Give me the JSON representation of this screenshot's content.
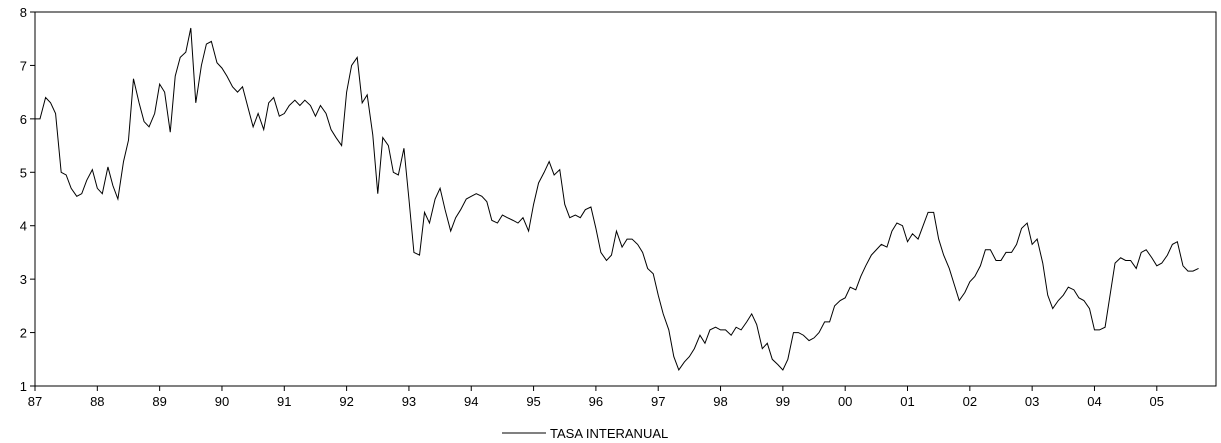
{
  "chart_data": {
    "type": "line",
    "xlabel": "",
    "ylabel": "",
    "ylim": [
      1,
      8
    ],
    "yticks": [
      1,
      2,
      3,
      4,
      5,
      6,
      7,
      8
    ],
    "xlim": [
      1987.0,
      2005.95
    ],
    "xticks": [
      {
        "value": 1987,
        "label": "87"
      },
      {
        "value": 1988,
        "label": "88"
      },
      {
        "value": 1989,
        "label": "89"
      },
      {
        "value": 1990,
        "label": "90"
      },
      {
        "value": 1991,
        "label": "91"
      },
      {
        "value": 1992,
        "label": "92"
      },
      {
        "value": 1993,
        "label": "93"
      },
      {
        "value": 1994,
        "label": "94"
      },
      {
        "value": 1995,
        "label": "95"
      },
      {
        "value": 1996,
        "label": "96"
      },
      {
        "value": 1997,
        "label": "97"
      },
      {
        "value": 1998,
        "label": "98"
      },
      {
        "value": 1999,
        "label": "99"
      },
      {
        "value": 2000,
        "label": "00"
      },
      {
        "value": 2001,
        "label": "01"
      },
      {
        "value": 2002,
        "label": "02"
      },
      {
        "value": 2003,
        "label": "03"
      },
      {
        "value": 2004,
        "label": "04"
      },
      {
        "value": 2005,
        "label": "05"
      }
    ],
    "grid": false,
    "legend_position": "bottom-center",
    "series": [
      {
        "name": "TASA INTERANUAL",
        "color": "#000000",
        "points": [
          [
            1987.0,
            6.0
          ],
          [
            1987.08,
            6.0
          ],
          [
            1987.17,
            6.4
          ],
          [
            1987.25,
            6.3
          ],
          [
            1987.33,
            6.1
          ],
          [
            1987.42,
            5.0
          ],
          [
            1987.5,
            4.95
          ],
          [
            1987.58,
            4.7
          ],
          [
            1987.67,
            4.55
          ],
          [
            1987.75,
            4.6
          ],
          [
            1987.83,
            4.85
          ],
          [
            1987.92,
            5.05
          ],
          [
            1988.0,
            4.7
          ],
          [
            1988.08,
            4.6
          ],
          [
            1988.17,
            5.1
          ],
          [
            1988.25,
            4.75
          ],
          [
            1988.33,
            4.5
          ],
          [
            1988.42,
            5.2
          ],
          [
            1988.5,
            5.6
          ],
          [
            1988.58,
            6.75
          ],
          [
            1988.67,
            6.3
          ],
          [
            1988.75,
            5.95
          ],
          [
            1988.83,
            5.85
          ],
          [
            1988.92,
            6.1
          ],
          [
            1989.0,
            6.65
          ],
          [
            1989.08,
            6.5
          ],
          [
            1989.17,
            5.75
          ],
          [
            1989.25,
            6.8
          ],
          [
            1989.33,
            7.15
          ],
          [
            1989.42,
            7.25
          ],
          [
            1989.5,
            7.7
          ],
          [
            1989.58,
            6.3
          ],
          [
            1989.67,
            7.0
          ],
          [
            1989.75,
            7.4
          ],
          [
            1989.83,
            7.45
          ],
          [
            1989.92,
            7.05
          ],
          [
            1990.0,
            6.95
          ],
          [
            1990.08,
            6.8
          ],
          [
            1990.17,
            6.6
          ],
          [
            1990.25,
            6.5
          ],
          [
            1990.33,
            6.6
          ],
          [
            1990.42,
            6.2
          ],
          [
            1990.5,
            5.85
          ],
          [
            1990.58,
            6.1
          ],
          [
            1990.67,
            5.8
          ],
          [
            1990.75,
            6.3
          ],
          [
            1990.83,
            6.4
          ],
          [
            1990.92,
            6.05
          ],
          [
            1991.0,
            6.1
          ],
          [
            1991.08,
            6.25
          ],
          [
            1991.17,
            6.35
          ],
          [
            1991.25,
            6.25
          ],
          [
            1991.33,
            6.35
          ],
          [
            1991.42,
            6.25
          ],
          [
            1991.5,
            6.05
          ],
          [
            1991.58,
            6.25
          ],
          [
            1991.67,
            6.1
          ],
          [
            1991.75,
            5.8
          ],
          [
            1991.83,
            5.65
          ],
          [
            1991.92,
            5.5
          ],
          [
            1992.0,
            6.5
          ],
          [
            1992.08,
            7.0
          ],
          [
            1992.17,
            7.15
          ],
          [
            1992.25,
            6.3
          ],
          [
            1992.33,
            6.45
          ],
          [
            1992.42,
            5.7
          ],
          [
            1992.5,
            4.6
          ],
          [
            1992.58,
            5.65
          ],
          [
            1992.67,
            5.5
          ],
          [
            1992.75,
            5.0
          ],
          [
            1992.83,
            4.95
          ],
          [
            1992.92,
            5.45
          ],
          [
            1993.0,
            4.5
          ],
          [
            1993.08,
            3.5
          ],
          [
            1993.17,
            3.45
          ],
          [
            1993.25,
            4.25
          ],
          [
            1993.33,
            4.05
          ],
          [
            1993.42,
            4.5
          ],
          [
            1993.5,
            4.7
          ],
          [
            1993.58,
            4.3
          ],
          [
            1993.67,
            3.9
          ],
          [
            1993.75,
            4.15
          ],
          [
            1993.83,
            4.3
          ],
          [
            1993.92,
            4.5
          ],
          [
            1994.0,
            4.55
          ],
          [
            1994.08,
            4.6
          ],
          [
            1994.17,
            4.55
          ],
          [
            1994.25,
            4.45
          ],
          [
            1994.33,
            4.1
          ],
          [
            1994.42,
            4.05
          ],
          [
            1994.5,
            4.2
          ],
          [
            1994.58,
            4.15
          ],
          [
            1994.67,
            4.1
          ],
          [
            1994.75,
            4.05
          ],
          [
            1994.83,
            4.15
          ],
          [
            1994.92,
            3.9
          ],
          [
            1995.0,
            4.4
          ],
          [
            1995.08,
            4.8
          ],
          [
            1995.17,
            5.0
          ],
          [
            1995.25,
            5.2
          ],
          [
            1995.33,
            4.95
          ],
          [
            1995.42,
            5.05
          ],
          [
            1995.5,
            4.4
          ],
          [
            1995.58,
            4.15
          ],
          [
            1995.67,
            4.2
          ],
          [
            1995.75,
            4.15
          ],
          [
            1995.83,
            4.3
          ],
          [
            1995.92,
            4.35
          ],
          [
            1996.0,
            3.95
          ],
          [
            1996.08,
            3.5
          ],
          [
            1996.17,
            3.35
          ],
          [
            1996.25,
            3.45
          ],
          [
            1996.33,
            3.9
          ],
          [
            1996.42,
            3.6
          ],
          [
            1996.5,
            3.75
          ],
          [
            1996.58,
            3.75
          ],
          [
            1996.67,
            3.65
          ],
          [
            1996.75,
            3.5
          ],
          [
            1996.83,
            3.2
          ],
          [
            1996.92,
            3.1
          ],
          [
            1997.0,
            2.7
          ],
          [
            1997.08,
            2.35
          ],
          [
            1997.17,
            2.05
          ],
          [
            1997.25,
            1.55
          ],
          [
            1997.33,
            1.3
          ],
          [
            1997.42,
            1.45
          ],
          [
            1997.5,
            1.55
          ],
          [
            1997.58,
            1.7
          ],
          [
            1997.67,
            1.95
          ],
          [
            1997.75,
            1.8
          ],
          [
            1997.83,
            2.05
          ],
          [
            1997.92,
            2.1
          ],
          [
            1998.0,
            2.05
          ],
          [
            1998.08,
            2.05
          ],
          [
            1998.17,
            1.95
          ],
          [
            1998.25,
            2.1
          ],
          [
            1998.33,
            2.05
          ],
          [
            1998.42,
            2.2
          ],
          [
            1998.5,
            2.35
          ],
          [
            1998.58,
            2.15
          ],
          [
            1998.67,
            1.7
          ],
          [
            1998.75,
            1.8
          ],
          [
            1998.83,
            1.5
          ],
          [
            1998.92,
            1.4
          ],
          [
            1999.0,
            1.3
          ],
          [
            1999.08,
            1.5
          ],
          [
            1999.17,
            2.0
          ],
          [
            1999.25,
            2.0
          ],
          [
            1999.33,
            1.95
          ],
          [
            1999.42,
            1.85
          ],
          [
            1999.5,
            1.9
          ],
          [
            1999.58,
            2.0
          ],
          [
            1999.67,
            2.2
          ],
          [
            1999.75,
            2.2
          ],
          [
            1999.83,
            2.5
          ],
          [
            1999.92,
            2.6
          ],
          [
            2000.0,
            2.65
          ],
          [
            2000.08,
            2.85
          ],
          [
            2000.17,
            2.8
          ],
          [
            2000.25,
            3.05
          ],
          [
            2000.33,
            3.25
          ],
          [
            2000.42,
            3.45
          ],
          [
            2000.5,
            3.55
          ],
          [
            2000.58,
            3.65
          ],
          [
            2000.67,
            3.6
          ],
          [
            2000.75,
            3.9
          ],
          [
            2000.83,
            4.05
          ],
          [
            2000.92,
            4.0
          ],
          [
            2001.0,
            3.7
          ],
          [
            2001.08,
            3.85
          ],
          [
            2001.17,
            3.75
          ],
          [
            2001.25,
            4.0
          ],
          [
            2001.33,
            4.25
          ],
          [
            2001.42,
            4.25
          ],
          [
            2001.5,
            3.75
          ],
          [
            2001.58,
            3.45
          ],
          [
            2001.67,
            3.2
          ],
          [
            2001.75,
            2.9
          ],
          [
            2001.83,
            2.6
          ],
          [
            2001.92,
            2.75
          ],
          [
            2002.0,
            2.95
          ],
          [
            2002.08,
            3.05
          ],
          [
            2002.17,
            3.25
          ],
          [
            2002.25,
            3.55
          ],
          [
            2002.33,
            3.55
          ],
          [
            2002.42,
            3.35
          ],
          [
            2002.5,
            3.35
          ],
          [
            2002.58,
            3.5
          ],
          [
            2002.67,
            3.5
          ],
          [
            2002.75,
            3.65
          ],
          [
            2002.83,
            3.95
          ],
          [
            2002.92,
            4.05
          ],
          [
            2003.0,
            3.65
          ],
          [
            2003.08,
            3.75
          ],
          [
            2003.17,
            3.3
          ],
          [
            2003.25,
            2.7
          ],
          [
            2003.33,
            2.45
          ],
          [
            2003.42,
            2.6
          ],
          [
            2003.5,
            2.7
          ],
          [
            2003.58,
            2.85
          ],
          [
            2003.67,
            2.8
          ],
          [
            2003.75,
            2.65
          ],
          [
            2003.83,
            2.6
          ],
          [
            2003.92,
            2.45
          ],
          [
            2004.0,
            2.05
          ],
          [
            2004.08,
            2.05
          ],
          [
            2004.17,
            2.1
          ],
          [
            2004.25,
            2.7
          ],
          [
            2004.33,
            3.3
          ],
          [
            2004.42,
            3.4
          ],
          [
            2004.5,
            3.35
          ],
          [
            2004.58,
            3.35
          ],
          [
            2004.67,
            3.2
          ],
          [
            2004.75,
            3.5
          ],
          [
            2004.83,
            3.55
          ],
          [
            2004.92,
            3.4
          ],
          [
            2005.0,
            3.25
          ],
          [
            2005.08,
            3.3
          ],
          [
            2005.17,
            3.45
          ],
          [
            2005.25,
            3.65
          ],
          [
            2005.33,
            3.7
          ],
          [
            2005.42,
            3.25
          ],
          [
            2005.5,
            3.15
          ],
          [
            2005.58,
            3.15
          ],
          [
            2005.67,
            3.2
          ]
        ]
      }
    ]
  }
}
